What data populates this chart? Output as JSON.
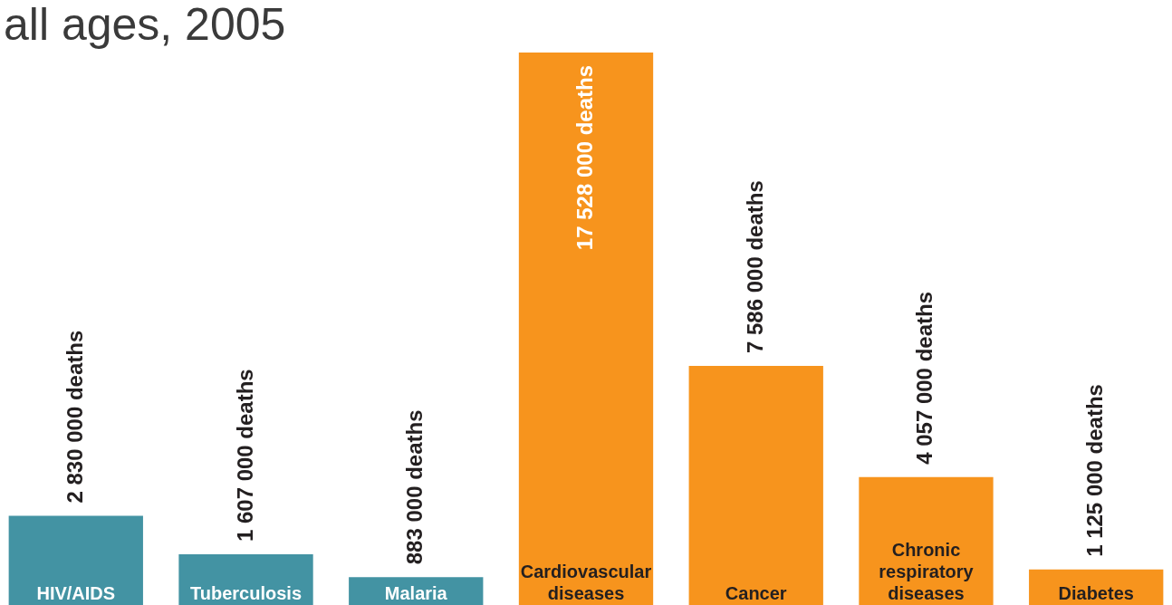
{
  "chart_data": {
    "type": "bar",
    "title": "all ages, 2005",
    "categories": [
      "HIV/AIDS",
      "Tuberculosis",
      "Malaria",
      "Cardiovascular diseases",
      "Cancer",
      "Chronic respiratory diseases",
      "Diabetes"
    ],
    "values": [
      2830000,
      1607000,
      883000,
      17528000,
      7586000,
      4057000,
      1125000
    ],
    "colors": [
      "#4393a3",
      "#4393a3",
      "#4393a3",
      "#f7941d",
      "#f7941d",
      "#f7941d",
      "#f7941d"
    ],
    "value_labels": [
      "2 830 000 deaths",
      "1 607 000 deaths",
      "883 000 deaths",
      "17 528 000 deaths",
      "7 586 000 deaths",
      "4 057 000 deaths",
      "1 125 000 deaths"
    ]
  }
}
